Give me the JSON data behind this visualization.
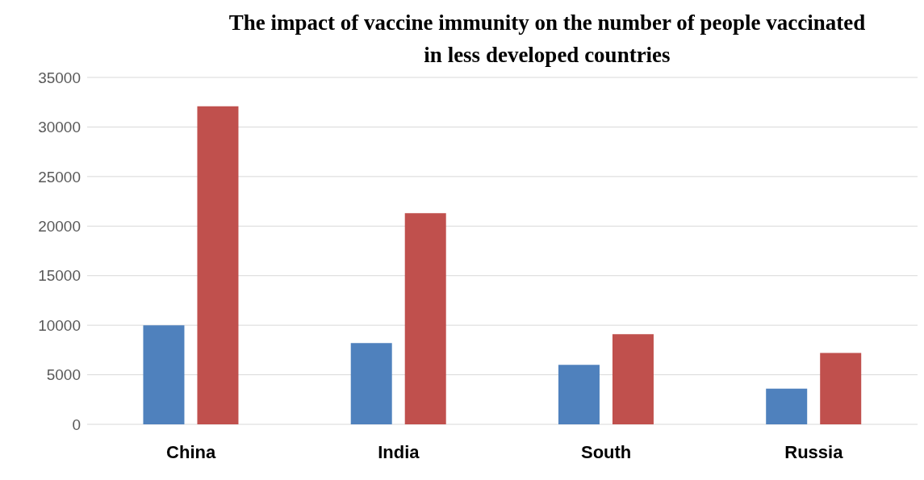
{
  "chart_data": {
    "type": "bar",
    "title": "The impact of vaccine immunity on the number of people vaccinated in less developed countries",
    "categories": [
      "China",
      "India",
      "South",
      "Russia"
    ],
    "series": [
      {
        "color": "#4f81bd",
        "values": [
          10000,
          8200,
          6000,
          3600
        ]
      },
      {
        "color": "#c0504d",
        "values": [
          32100,
          21300,
          9100,
          7200
        ]
      }
    ],
    "ylim": [
      0,
      35000
    ],
    "yticks": [
      0,
      5000,
      10000,
      15000,
      20000,
      25000,
      30000,
      35000
    ],
    "grid": "y",
    "legend": false
  }
}
